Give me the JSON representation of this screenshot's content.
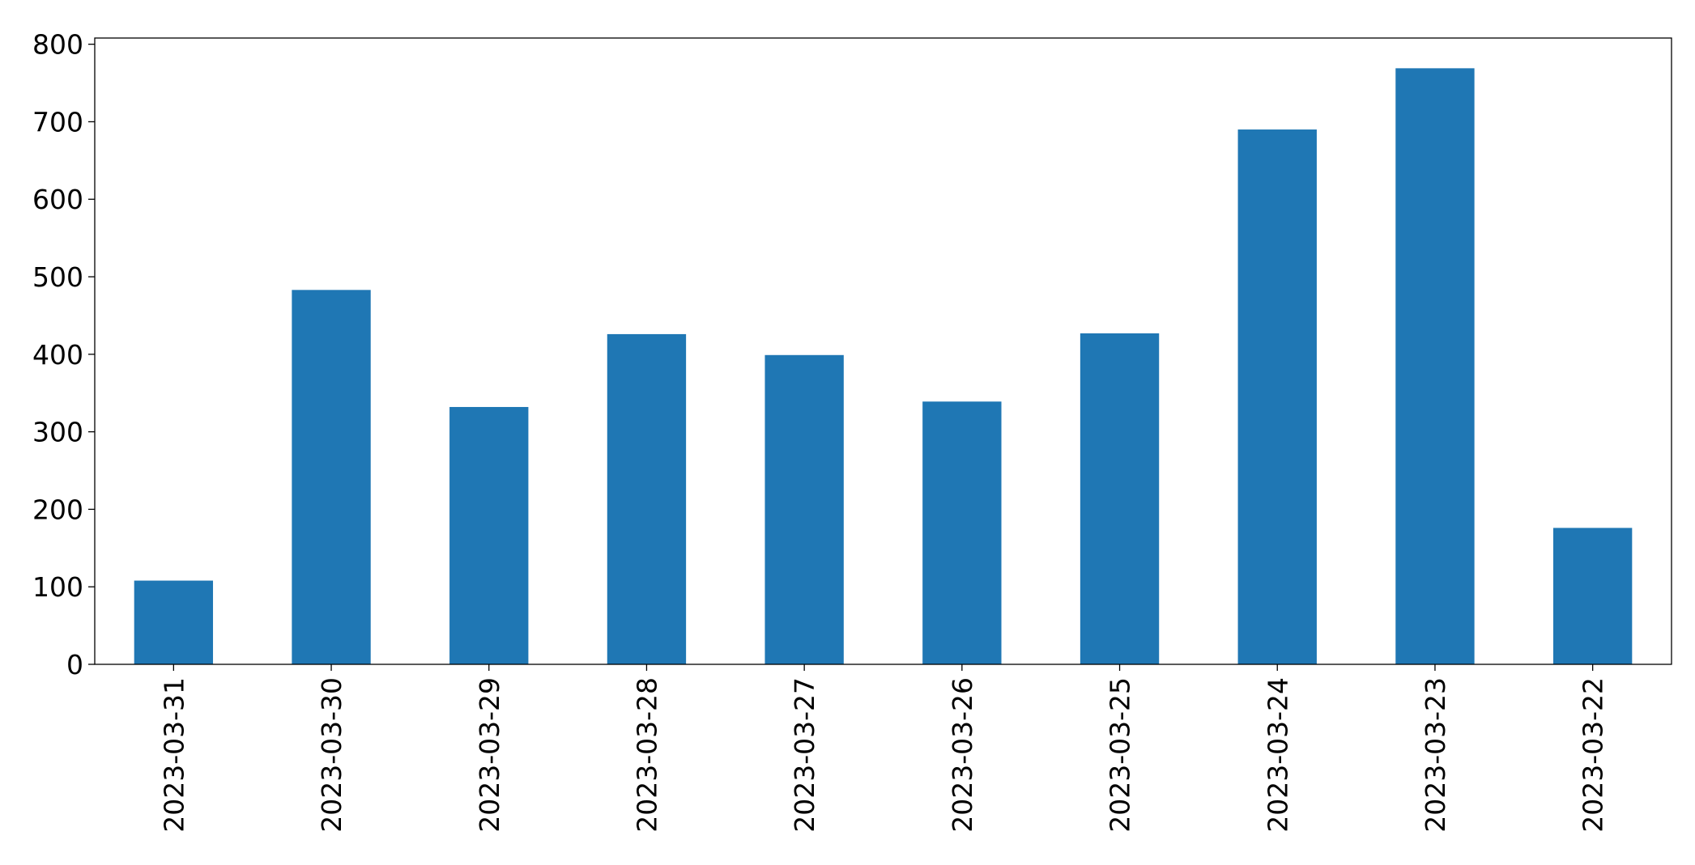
{
  "chart_data": {
    "type": "bar",
    "categories": [
      "2023-03-31",
      "2023-03-30",
      "2023-03-29",
      "2023-03-28",
      "2023-03-27",
      "2023-03-26",
      "2023-03-25",
      "2023-03-24",
      "2023-03-23",
      "2023-03-22"
    ],
    "values": [
      108,
      483,
      332,
      426,
      399,
      339,
      427,
      690,
      769,
      176
    ],
    "color": "#1f77b4",
    "ylim": [
      0,
      808
    ],
    "yticks": [
      0,
      100,
      200,
      300,
      400,
      500,
      600,
      700,
      800
    ],
    "grid": false
  }
}
